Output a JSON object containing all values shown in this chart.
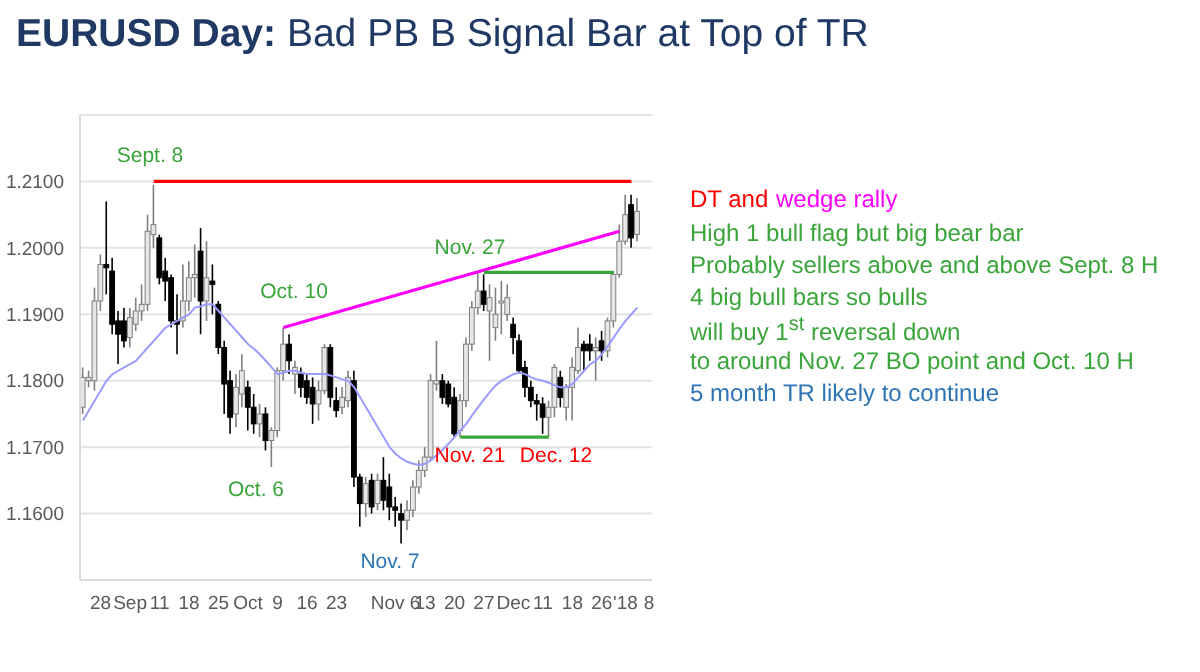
{
  "chart_data": {
    "type": "candlestick",
    "title": "EURUSD Day: Bad PB B Signal Bar at Top of TR",
    "categories": [
      null,
      null,
      null,
      "28",
      null,
      null,
      null,
      null,
      "Sep",
      null,
      null,
      null,
      null,
      "11",
      null,
      null,
      null,
      null,
      "18",
      null,
      null,
      null,
      null,
      "25",
      null,
      null,
      null,
      null,
      "Oct",
      null,
      null,
      null,
      null,
      "9",
      null,
      null,
      null,
      null,
      "16",
      null,
      null,
      null,
      null,
      "23",
      null,
      null,
      null,
      null,
      null,
      null,
      null,
      null,
      null,
      "Nov 6",
      null,
      null,
      null,
      null,
      "13",
      null,
      null,
      null,
      null,
      "20",
      null,
      null,
      null,
      null,
      "27",
      null,
      null,
      null,
      null,
      "Dec",
      null,
      null,
      null,
      null,
      "11",
      null,
      null,
      null,
      null,
      "18",
      null,
      null,
      null,
      null,
      "26",
      null,
      null,
      null,
      "'18",
      null,
      null,
      null,
      "8"
    ],
    "ohlc": [
      [
        1.176,
        1.182,
        1.175,
        1.1805
      ],
      [
        1.18,
        1.1815,
        1.179,
        1.1805
      ],
      [
        1.18,
        1.194,
        1.1785,
        1.192
      ],
      [
        1.192,
        1.199,
        1.1905,
        1.1975
      ],
      [
        1.1975,
        1.207,
        1.193,
        1.197
      ],
      [
        1.1965,
        1.1985,
        1.187,
        1.1885
      ],
      [
        1.189,
        1.1905,
        1.1825,
        1.187
      ],
      [
        1.189,
        1.191,
        1.185,
        1.186
      ],
      [
        1.1865,
        1.191,
        1.185,
        1.1895
      ],
      [
        1.1885,
        1.1925,
        1.1875,
        1.1905
      ],
      [
        1.1905,
        1.1945,
        1.189,
        1.1915
      ],
      [
        1.1915,
        1.205,
        1.1905,
        1.2025
      ],
      [
        1.202,
        1.2095,
        1.2,
        1.2035
      ],
      [
        1.2015,
        1.202,
        1.1945,
        1.1955
      ],
      [
        1.1965,
        1.1985,
        1.192,
        1.195
      ],
      [
        1.1955,
        1.196,
        1.188,
        1.189
      ],
      [
        1.189,
        1.193,
        1.184,
        1.1885
      ],
      [
        1.189,
        1.1975,
        1.188,
        1.192
      ],
      [
        1.192,
        1.198,
        1.1905,
        1.1955
      ],
      [
        1.1955,
        1.2005,
        1.1925,
        1.196
      ],
      [
        1.1995,
        1.203,
        1.187,
        1.192
      ],
      [
        1.192,
        1.201,
        1.189,
        1.1955
      ],
      [
        1.195,
        1.1975,
        1.19,
        1.1945
      ],
      [
        1.1915,
        1.192,
        1.184,
        1.185
      ],
      [
        1.185,
        1.186,
        1.175,
        1.1795
      ],
      [
        1.18,
        1.1815,
        1.172,
        1.1745
      ],
      [
        1.175,
        1.181,
        1.173,
        1.179
      ],
      [
        1.178,
        1.184,
        1.176,
        1.1815
      ],
      [
        1.179,
        1.18,
        1.1725,
        1.176
      ],
      [
        1.176,
        1.178,
        1.172,
        1.1735
      ],
      [
        1.1735,
        1.1765,
        1.1715,
        1.175
      ],
      [
        1.175,
        1.176,
        1.1695,
        1.171
      ],
      [
        1.171,
        1.173,
        1.167,
        1.1725
      ],
      [
        1.1725,
        1.182,
        1.1715,
        1.1815
      ],
      [
        1.1815,
        1.188,
        1.18,
        1.1855
      ],
      [
        1.1855,
        1.187,
        1.181,
        1.183
      ],
      [
        1.181,
        1.183,
        1.178,
        1.182
      ],
      [
        1.181,
        1.182,
        1.1775,
        1.179
      ],
      [
        1.18,
        1.181,
        1.1765,
        1.1775
      ],
      [
        1.179,
        1.1805,
        1.1735,
        1.1765
      ],
      [
        1.1765,
        1.18,
        1.174,
        1.1785
      ],
      [
        1.1785,
        1.1855,
        1.178,
        1.185
      ],
      [
        1.185,
        1.1855,
        1.176,
        1.1775
      ],
      [
        1.177,
        1.179,
        1.1745,
        1.1755
      ],
      [
        1.176,
        1.179,
        1.175,
        1.1775
      ],
      [
        1.177,
        1.1815,
        1.176,
        1.1805
      ],
      [
        1.18,
        1.1815,
        1.164,
        1.1655
      ],
      [
        1.1655,
        1.166,
        1.158,
        1.1615
      ],
      [
        1.1615,
        1.1655,
        1.1595,
        1.1645
      ],
      [
        1.165,
        1.166,
        1.16,
        1.161
      ],
      [
        1.1615,
        1.166,
        1.1605,
        1.165
      ],
      [
        1.165,
        1.1685,
        1.1605,
        1.162
      ],
      [
        1.164,
        1.166,
        1.159,
        1.161
      ],
      [
        1.161,
        1.1625,
        1.158,
        1.1605
      ],
      [
        1.16,
        1.1615,
        1.1555,
        1.159
      ],
      [
        1.159,
        1.162,
        1.1575,
        1.1605
      ],
      [
        1.1605,
        1.165,
        1.1595,
        1.164
      ],
      [
        1.164,
        1.168,
        1.163,
        1.1665
      ],
      [
        1.1665,
        1.17,
        1.1655,
        1.1685
      ],
      [
        1.1685,
        1.181,
        1.168,
        1.18
      ],
      [
        1.1795,
        1.186,
        1.1785,
        1.18
      ],
      [
        1.18,
        1.181,
        1.1765,
        1.1775
      ],
      [
        1.1795,
        1.18,
        1.176,
        1.1765
      ],
      [
        1.1775,
        1.179,
        1.1715,
        1.172
      ],
      [
        1.1725,
        1.178,
        1.1715,
        1.177
      ],
      [
        1.177,
        1.1865,
        1.176,
        1.1855
      ],
      [
        1.1855,
        1.192,
        1.1845,
        1.191
      ],
      [
        1.191,
        1.1965,
        1.19,
        1.1935
      ],
      [
        1.1935,
        1.196,
        1.1905,
        1.1915
      ],
      [
        1.1905,
        1.1945,
        1.183,
        1.1925
      ],
      [
        1.188,
        1.194,
        1.186,
        1.19
      ],
      [
        1.192,
        1.195,
        1.187,
        1.192
      ],
      [
        1.19,
        1.1945,
        1.189,
        1.1925
      ],
      [
        1.1885,
        1.1895,
        1.184,
        1.1865
      ],
      [
        1.186,
        1.187,
        1.181,
        1.1815
      ],
      [
        1.182,
        1.183,
        1.1775,
        1.179
      ],
      [
        1.179,
        1.18,
        1.176,
        1.177
      ],
      [
        1.177,
        1.178,
        1.174,
        1.1765
      ],
      [
        1.1765,
        1.1775,
        1.172,
        1.1745
      ],
      [
        1.1745,
        1.177,
        1.1715,
        1.176
      ],
      [
        1.176,
        1.1825,
        1.1745,
        1.182
      ],
      [
        1.1805,
        1.1815,
        1.176,
        1.1775
      ],
      [
        1.176,
        1.1795,
        1.174,
        1.179
      ],
      [
        1.179,
        1.1835,
        1.174,
        1.182
      ],
      [
        1.1815,
        1.188,
        1.181,
        1.185
      ],
      [
        1.1855,
        1.186,
        1.1815,
        1.1845
      ],
      [
        1.1855,
        1.187,
        1.183,
        1.1845
      ],
      [
        1.1845,
        1.1865,
        1.18,
        1.185
      ],
      [
        1.186,
        1.1875,
        1.183,
        1.1845
      ],
      [
        1.1845,
        1.1895,
        1.1835,
        1.189
      ],
      [
        1.189,
        1.1965,
        1.188,
        1.196
      ],
      [
        1.196,
        1.2035,
        1.1955,
        1.201
      ],
      [
        1.201,
        1.208,
        1.2005,
        1.205
      ],
      [
        1.2065,
        1.208,
        1.2,
        1.2015
      ],
      [
        1.202,
        1.2075,
        1.201,
        1.2055
      ],
      null,
      null
    ],
    "series": [
      {
        "type": "line",
        "color": "#9b9bff",
        "values": [
          1.174,
          1.1755,
          1.177,
          1.1785,
          1.18,
          1.181,
          1.1815,
          1.182,
          1.1825,
          1.183,
          1.184,
          1.185,
          1.186,
          1.187,
          1.188,
          1.1885,
          1.189,
          1.1895,
          1.19,
          1.191,
          1.1912,
          1.1915,
          1.1915,
          1.1905,
          1.1895,
          1.1885,
          1.1875,
          1.1865,
          1.1855,
          1.1848,
          1.184,
          1.183,
          1.182,
          1.181,
          1.1812,
          1.1815,
          1.1815,
          1.1812,
          1.181,
          1.181,
          1.181,
          1.181,
          1.1808,
          1.1805,
          1.1802,
          1.18,
          1.179,
          1.1775,
          1.176,
          1.1745,
          1.173,
          1.1715,
          1.17,
          1.169,
          1.1683,
          1.1678,
          1.1675,
          1.1673,
          1.1675,
          1.168,
          1.1688,
          1.1696,
          1.1705,
          1.1715,
          1.1725,
          1.1735,
          1.1748,
          1.176,
          1.1772,
          1.1783,
          1.1793,
          1.18,
          1.1805,
          1.181,
          1.1812,
          1.181,
          1.1805,
          1.1802,
          1.18,
          1.1797,
          1.1793,
          1.179,
          1.179,
          1.1795,
          1.1805,
          1.1815,
          1.1825,
          1.183,
          1.184,
          1.1852,
          1.1865,
          1.1878,
          1.189,
          1.19,
          1.191,
          null,
          null
        ]
      },
      {
        "type": "line",
        "color": "#ff0000",
        "values": [
          null,
          null,
          null,
          null,
          null,
          null,
          null,
          null,
          null,
          null,
          null,
          null,
          1.21,
          null,
          null,
          null,
          null,
          null,
          null,
          null,
          null,
          null,
          null,
          null,
          null,
          null,
          null,
          null,
          null,
          null,
          null,
          null,
          null,
          null,
          null,
          null,
          null,
          null,
          null,
          null,
          null,
          null,
          null,
          null,
          null,
          null,
          null,
          null,
          null,
          null,
          null,
          null,
          null,
          null,
          null,
          null,
          null,
          null,
          null,
          null,
          null,
          null,
          null,
          null,
          null,
          null,
          null,
          null,
          null,
          null,
          null,
          null,
          null,
          null,
          null,
          null,
          null,
          null,
          null,
          null,
          null,
          null,
          null,
          null,
          null,
          null,
          null,
          null,
          null,
          null,
          null,
          null,
          null,
          1.21,
          null,
          null,
          null
        ]
      },
      {
        "type": "line",
        "color": "#ff00ff",
        "values": [
          null,
          null,
          null,
          null,
          null,
          null,
          null,
          null,
          null,
          null,
          null,
          null,
          null,
          null,
          null,
          null,
          null,
          null,
          null,
          null,
          null,
          null,
          null,
          null,
          null,
          null,
          null,
          null,
          null,
          null,
          null,
          null,
          null,
          null,
          1.188,
          null,
          null,
          null,
          null,
          null,
          null,
          null,
          null,
          null,
          null,
          null,
          null,
          null,
          null,
          null,
          null,
          null,
          null,
          null,
          null,
          null,
          null,
          null,
          null,
          null,
          null,
          null,
          null,
          null,
          null,
          null,
          null,
          null,
          null,
          null,
          null,
          null,
          null,
          null,
          null,
          null,
          null,
          null,
          null,
          null,
          null,
          null,
          null,
          null,
          null,
          null,
          null,
          null,
          null,
          null,
          null,
          1.2025,
          null,
          null,
          null,
          null,
          null
        ]
      },
      {
        "type": "line",
        "color": "#3aa53a",
        "values": [
          null,
          null,
          null,
          null,
          null,
          null,
          null,
          null,
          null,
          null,
          null,
          null,
          null,
          null,
          null,
          null,
          null,
          null,
          null,
          null,
          null,
          null,
          null,
          null,
          null,
          null,
          null,
          null,
          null,
          null,
          null,
          null,
          null,
          null,
          null,
          null,
          null,
          null,
          null,
          null,
          null,
          null,
          null,
          null,
          null,
          null,
          null,
          null,
          null,
          null,
          null,
          null,
          null,
          null,
          null,
          null,
          null,
          null,
          null,
          null,
          null,
          null,
          null,
          null,
          null,
          null,
          null,
          null,
          1.1963,
          null,
          null,
          null,
          null,
          null,
          null,
          null,
          null,
          null,
          null,
          null,
          null,
          null,
          null,
          null,
          null,
          null,
          null,
          null,
          null,
          null,
          1.1963,
          null,
          null,
          null,
          null,
          null,
          null
        ]
      },
      {
        "type": "line",
        "color": "#3aa53a",
        "values": [
          null,
          null,
          null,
          null,
          null,
          null,
          null,
          null,
          null,
          null,
          null,
          null,
          null,
          null,
          null,
          null,
          null,
          null,
          null,
          null,
          null,
          null,
          null,
          null,
          null,
          null,
          null,
          null,
          null,
          null,
          null,
          null,
          null,
          null,
          null,
          null,
          null,
          null,
          null,
          null,
          null,
          null,
          null,
          null,
          null,
          null,
          null,
          null,
          null,
          null,
          null,
          null,
          null,
          null,
          null,
          null,
          null,
          null,
          null,
          null,
          null,
          null,
          null,
          null,
          1.1715,
          null,
          null,
          null,
          null,
          null,
          null,
          null,
          null,
          null,
          null,
          null,
          null,
          null,
          null,
          1.1715,
          null,
          null,
          null,
          null,
          null,
          null,
          null,
          null,
          null,
          null,
          null,
          null,
          null,
          null,
          null,
          null,
          null
        ]
      }
    ],
    "ylim": [
      1.15,
      1.22
    ],
    "yticks": [
      {
        "value": 1.16,
        "label": "1.1600"
      },
      {
        "value": 1.17,
        "label": "1.1700"
      },
      {
        "value": 1.18,
        "label": "1.1800"
      },
      {
        "value": 1.19,
        "label": "1.1900"
      },
      {
        "value": 1.2,
        "label": "1.2000"
      },
      {
        "value": 1.21,
        "label": "1.2100"
      }
    ],
    "grid": "y",
    "annotations": [
      "Sept. 8",
      "Oct. 10",
      "Oct. 6",
      "Nov. 7",
      "Nov. 27",
      "Nov. 21",
      "Dec. 12",
      "DT and",
      "wedge rally",
      "High 1 bull flag but big bear bar",
      "Probably sellers above and above Sept. 8 H",
      "4 big bull bars so bulls",
      "will buy 1$^{st}$ reversal down",
      "to around Nov. 27 BO point and Oct. 10 H",
      "5 month TR likely to continue"
    ]
  }
}
